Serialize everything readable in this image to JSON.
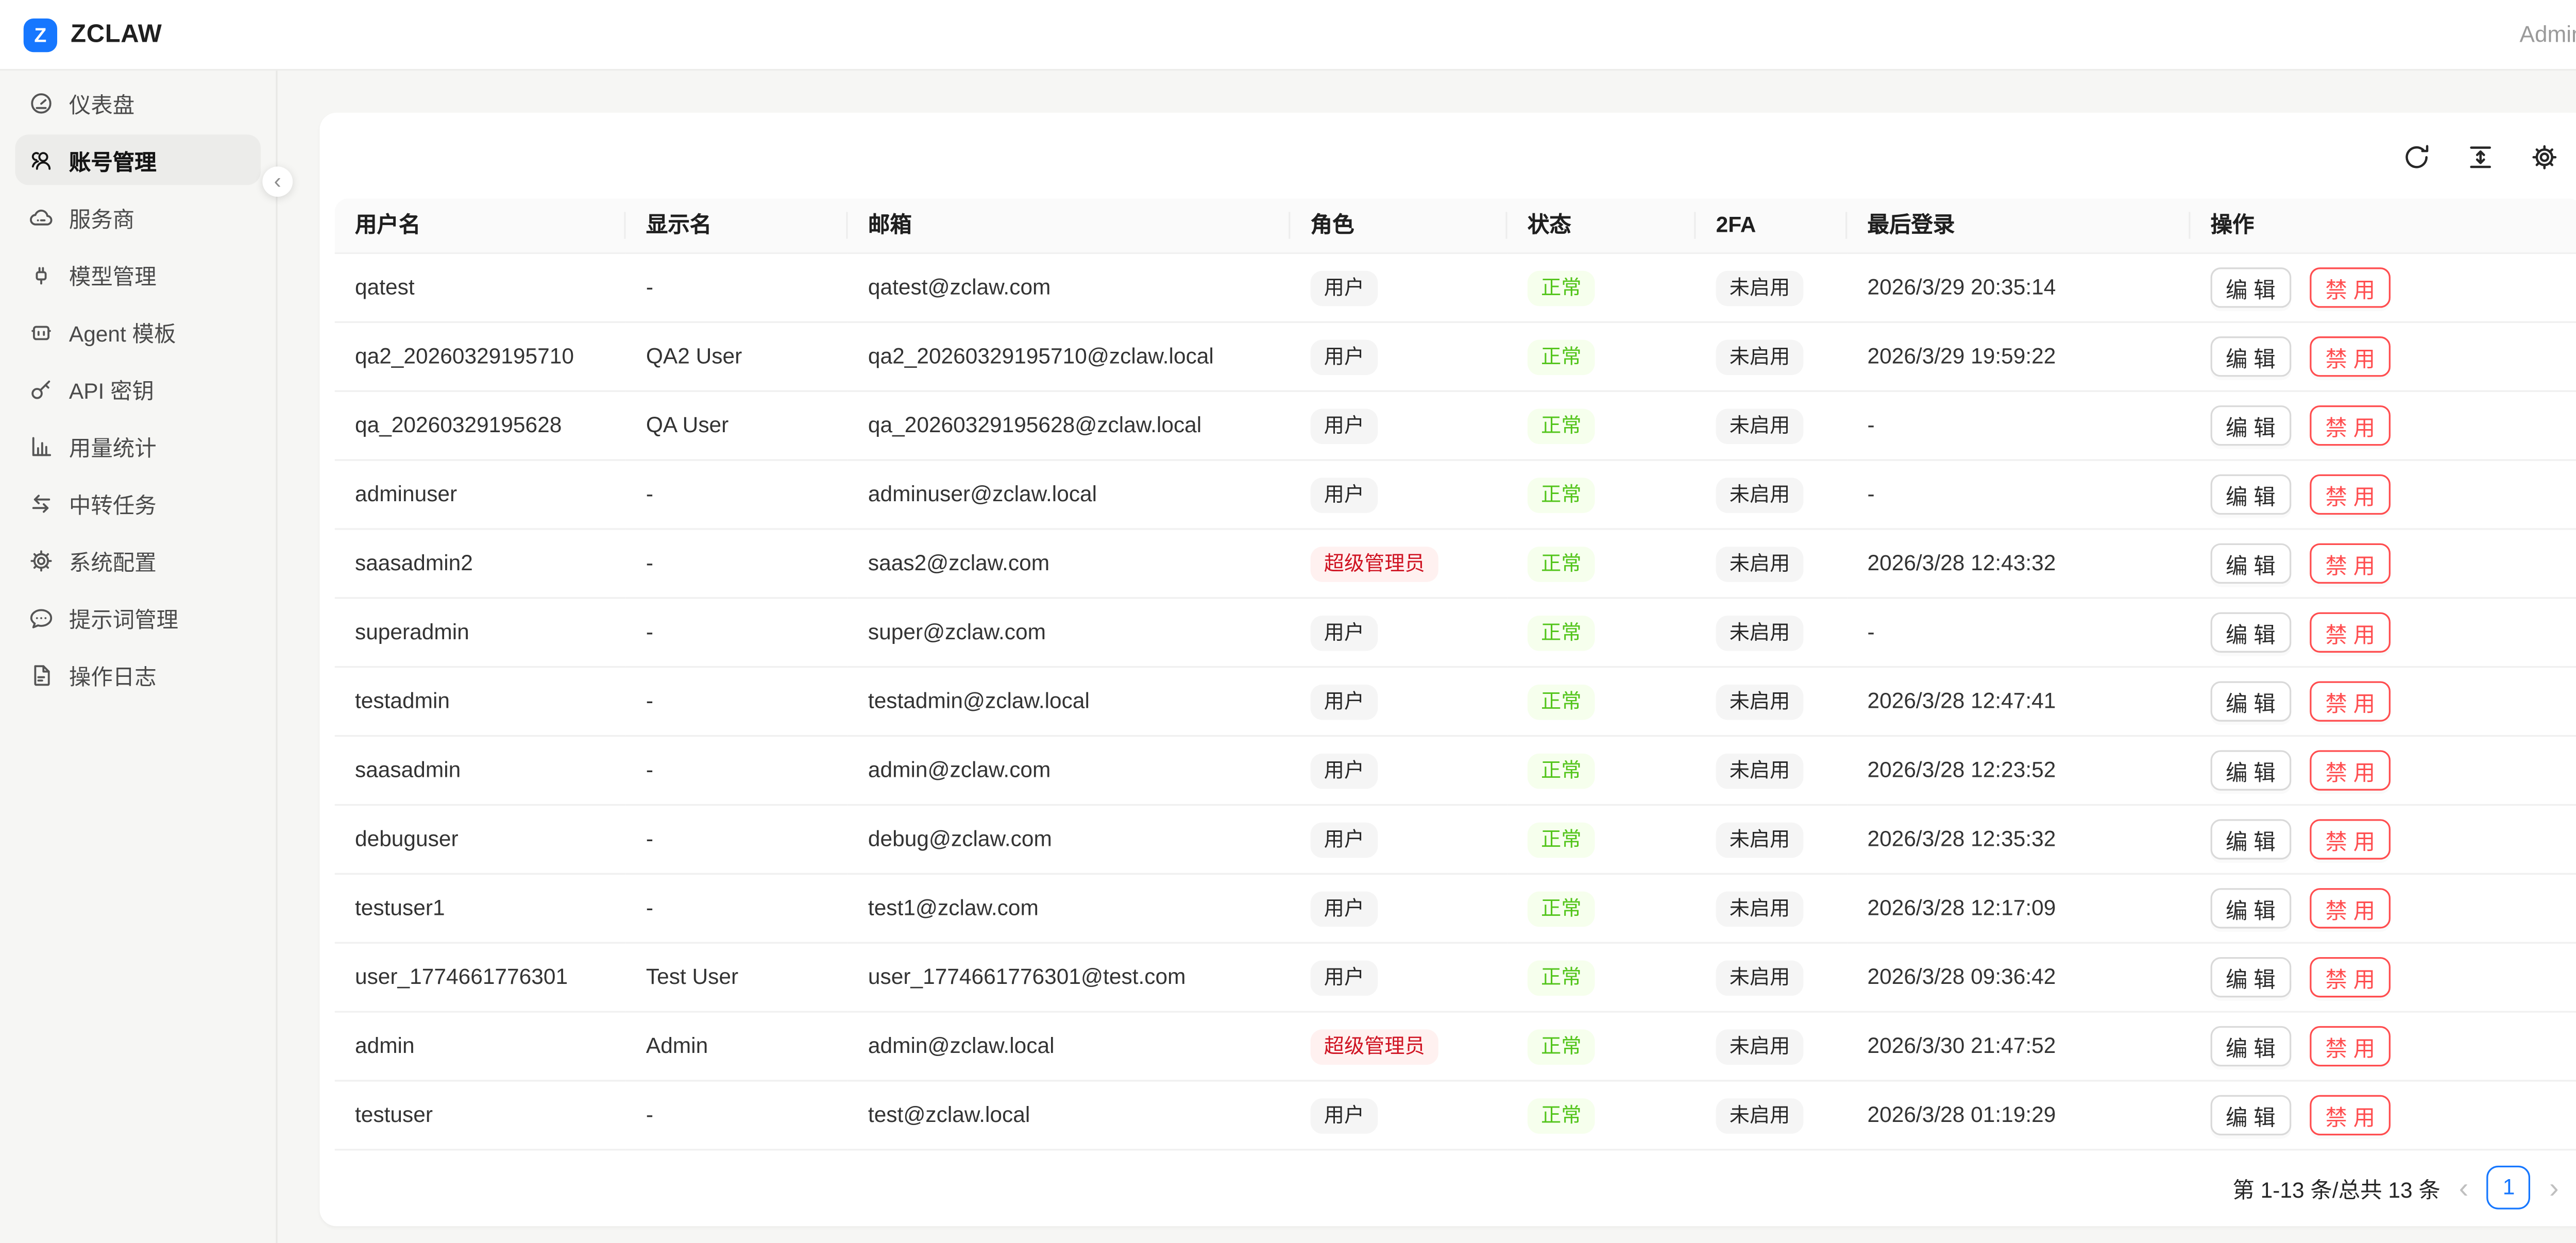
{
  "brand": {
    "logo_letter": "Z",
    "name": "ZCLAW"
  },
  "header": {
    "user_label": "Admin"
  },
  "sidebar": {
    "collapse_glyph": "‹",
    "items": [
      {
        "id": "dashboard",
        "label": "仪表盘",
        "icon": "dashboard",
        "active": false
      },
      {
        "id": "accounts",
        "label": "账号管理",
        "icon": "team",
        "active": true
      },
      {
        "id": "providers",
        "label": "服务商",
        "icon": "cloud",
        "active": false
      },
      {
        "id": "models",
        "label": "模型管理",
        "icon": "api",
        "active": false
      },
      {
        "id": "agent-templates",
        "label": "Agent 模板",
        "icon": "robot",
        "active": false
      },
      {
        "id": "api-keys",
        "label": "API 密钥",
        "icon": "key",
        "active": false
      },
      {
        "id": "usage-stats",
        "label": "用量统计",
        "icon": "chart",
        "active": false
      },
      {
        "id": "relay-tasks",
        "label": "中转任务",
        "icon": "swap",
        "active": false
      },
      {
        "id": "system-config",
        "label": "系统配置",
        "icon": "gear",
        "active": false
      },
      {
        "id": "prompts",
        "label": "提示词管理",
        "icon": "message",
        "active": false
      },
      {
        "id": "operation-logs",
        "label": "操作日志",
        "icon": "file",
        "active": false
      }
    ]
  },
  "toolbar": {
    "icons": [
      "refresh",
      "column-height",
      "settings"
    ]
  },
  "table": {
    "columns": [
      "用户名",
      "显示名",
      "邮箱",
      "角色",
      "状态",
      "2FA",
      "最后登录",
      "操作"
    ],
    "actions": {
      "edit": "编 辑",
      "disable": "禁 用"
    },
    "rows": [
      {
        "username": "qatest",
        "display_name": "-",
        "email": "qatest@zclaw.com",
        "role": "用户",
        "role_type": "user",
        "status": "正常",
        "twofa": "未启用",
        "last_login": "2026/3/29 20:35:14"
      },
      {
        "username": "qa2_20260329195710",
        "display_name": "QA2 User",
        "email": "qa2_20260329195710@zclaw.local",
        "role": "用户",
        "role_type": "user",
        "status": "正常",
        "twofa": "未启用",
        "last_login": "2026/3/29 19:59:22"
      },
      {
        "username": "qa_20260329195628",
        "display_name": "QA User",
        "email": "qa_20260329195628@zclaw.local",
        "role": "用户",
        "role_type": "user",
        "status": "正常",
        "twofa": "未启用",
        "last_login": "-"
      },
      {
        "username": "adminuser",
        "display_name": "-",
        "email": "adminuser@zclaw.local",
        "role": "用户",
        "role_type": "user",
        "status": "正常",
        "twofa": "未启用",
        "last_login": "-"
      },
      {
        "username": "saasadmin2",
        "display_name": "-",
        "email": "saas2@zclaw.com",
        "role": "超级管理员",
        "role_type": "super_admin",
        "status": "正常",
        "twofa": "未启用",
        "last_login": "2026/3/28 12:43:32"
      },
      {
        "username": "superadmin",
        "display_name": "-",
        "email": "super@zclaw.com",
        "role": "用户",
        "role_type": "user",
        "status": "正常",
        "twofa": "未启用",
        "last_login": "-"
      },
      {
        "username": "testadmin",
        "display_name": "-",
        "email": "testadmin@zclaw.local",
        "role": "用户",
        "role_type": "user",
        "status": "正常",
        "twofa": "未启用",
        "last_login": "2026/3/28 12:47:41"
      },
      {
        "username": "saasadmin",
        "display_name": "-",
        "email": "admin@zclaw.com",
        "role": "用户",
        "role_type": "user",
        "status": "正常",
        "twofa": "未启用",
        "last_login": "2026/3/28 12:23:52"
      },
      {
        "username": "debuguser",
        "display_name": "-",
        "email": "debug@zclaw.com",
        "role": "用户",
        "role_type": "user",
        "status": "正常",
        "twofa": "未启用",
        "last_login": "2026/3/28 12:35:32"
      },
      {
        "username": "testuser1",
        "display_name": "-",
        "email": "test1@zclaw.com",
        "role": "用户",
        "role_type": "user",
        "status": "正常",
        "twofa": "未启用",
        "last_login": "2026/3/28 12:17:09"
      },
      {
        "username": "user_1774661776301",
        "display_name": "Test User",
        "email": "user_1774661776301@test.com",
        "role": "用户",
        "role_type": "user",
        "status": "正常",
        "twofa": "未启用",
        "last_login": "2026/3/28 09:36:42"
      },
      {
        "username": "admin",
        "display_name": "Admin",
        "email": "admin@zclaw.local",
        "role": "超级管理员",
        "role_type": "super_admin",
        "status": "正常",
        "twofa": "未启用",
        "last_login": "2026/3/30 21:47:52"
      },
      {
        "username": "testuser",
        "display_name": "-",
        "email": "test@zclaw.local",
        "role": "用户",
        "role_type": "user",
        "status": "正常",
        "twofa": "未启用",
        "last_login": "2026/3/28 01:19:29"
      }
    ]
  },
  "pagination": {
    "summary": "第 1-13 条/总共 13 条",
    "prev_glyph": "‹",
    "current_page": "1",
    "next_glyph": "›"
  },
  "colors": {
    "accent": "#1677ff",
    "success": "#52c41a",
    "success_bg": "#f6ffed",
    "danger": "#ff4d4f",
    "danger_text": "#cf1322",
    "danger_bg": "#fff1f0"
  }
}
